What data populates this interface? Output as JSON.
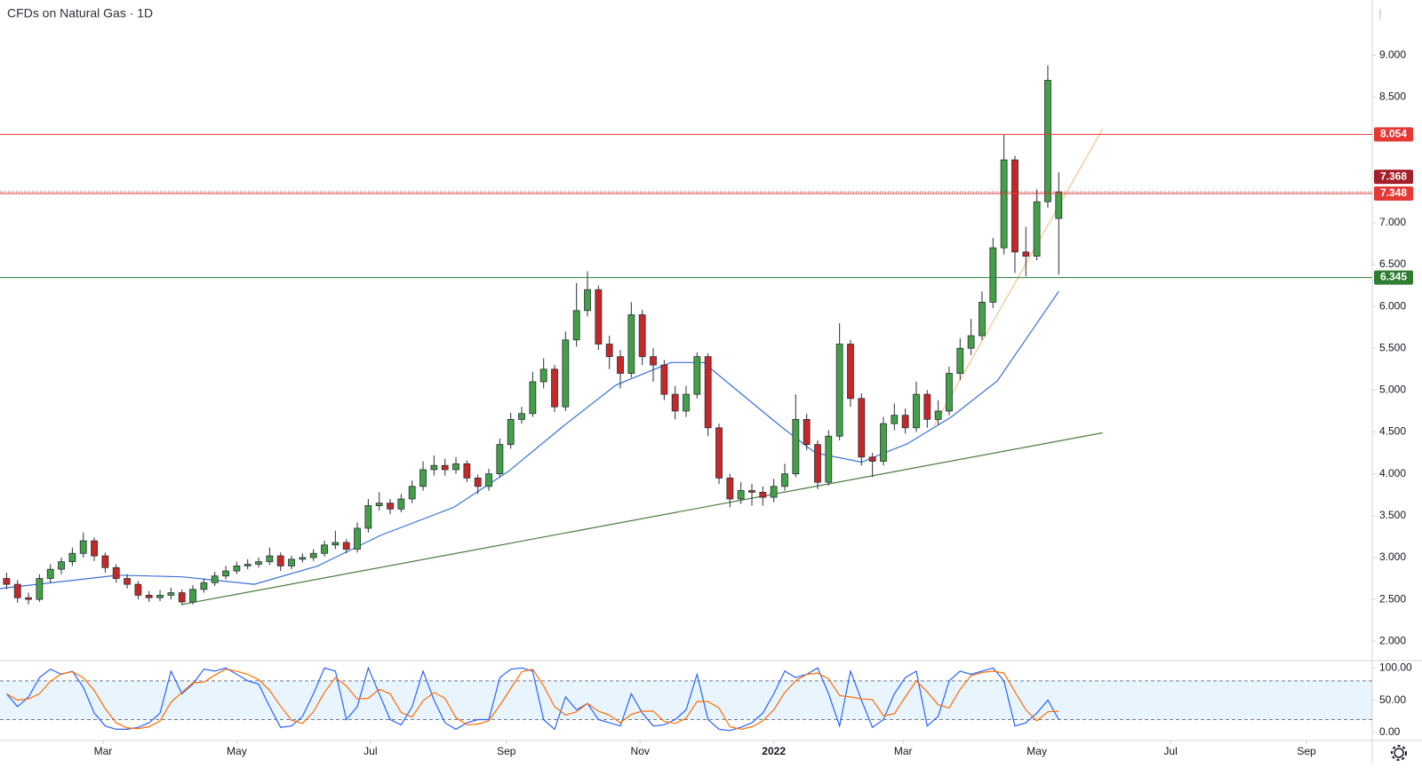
{
  "chart_data": {
    "type": "candlestick",
    "title": "CFDs on Natural Gas · 1D",
    "up_color": "#43a047",
    "down_color": "#c62828",
    "x": [
      15,
      20,
      25,
      30,
      35,
      40,
      45,
      50,
      55,
      60,
      65,
      70,
      75,
      80,
      85,
      90,
      95,
      100,
      105,
      110,
      115,
      120,
      125,
      130,
      135,
      140,
      145,
      150,
      155,
      160,
      165,
      170,
      175,
      180,
      185,
      190,
      195,
      200,
      205,
      210,
      215,
      220,
      225,
      230,
      235,
      240,
      245,
      250,
      255,
      260,
      265,
      270,
      275,
      280,
      285,
      290,
      295,
      300,
      305,
      310,
      315,
      320,
      325,
      330,
      335,
      340,
      345,
      350,
      355,
      360,
      365,
      370,
      375,
      380,
      385,
      390,
      395,
      400,
      405,
      410,
      415,
      420,
      425,
      430,
      435,
      440,
      445,
      450,
      455,
      460,
      465,
      470,
      475,
      480,
      485,
      490,
      495
    ],
    "open": [
      2.75,
      2.68,
      2.52,
      2.5,
      2.75,
      2.86,
      2.95,
      3.05,
      3.2,
      3.02,
      2.88,
      2.75,
      2.68,
      2.55,
      2.52,
      2.55,
      2.58,
      2.47,
      2.62,
      2.7,
      2.78,
      2.84,
      2.9,
      2.92,
      2.95,
      3.02,
      2.9,
      2.98,
      3.0,
      3.05,
      3.15,
      3.18,
      3.1,
      3.35,
      3.62,
      3.65,
      3.58,
      3.7,
      3.85,
      4.05,
      4.1,
      4.05,
      4.12,
      3.95,
      3.85,
      4.0,
      4.35,
      4.65,
      4.72,
      5.1,
      5.25,
      4.8,
      5.6,
      5.95,
      6.2,
      5.55,
      5.4,
      5.2,
      5.9,
      5.4,
      5.3,
      4.95,
      4.75,
      4.95,
      5.4,
      4.55,
      3.95,
      3.7,
      3.8,
      3.78,
      3.72,
      3.85,
      4.0,
      4.65,
      4.35,
      3.9,
      4.45,
      5.55,
      4.9,
      4.2,
      4.15,
      4.6,
      4.7,
      4.55,
      4.95,
      4.65,
      4.75,
      5.2,
      5.5,
      5.65,
      6.05,
      6.7,
      7.75,
      6.65,
      6.6,
      7.25,
      7.05
    ],
    "high": [
      2.82,
      2.73,
      2.58,
      2.8,
      2.92,
      3.0,
      3.12,
      3.3,
      3.24,
      3.06,
      2.92,
      2.8,
      2.72,
      2.6,
      2.61,
      2.64,
      2.62,
      2.67,
      2.75,
      2.83,
      2.9,
      2.95,
      2.98,
      3.0,
      3.12,
      3.06,
      3.02,
      3.05,
      3.1,
      3.2,
      3.32,
      3.22,
      3.42,
      3.7,
      3.78,
      3.7,
      3.76,
      3.92,
      4.15,
      4.22,
      4.18,
      4.2,
      4.16,
      3.99,
      4.06,
      4.42,
      4.73,
      4.8,
      5.22,
      5.38,
      5.3,
      5.7,
      6.28,
      6.42,
      6.25,
      5.65,
      5.48,
      6.05,
      5.96,
      5.5,
      5.36,
      5.05,
      5.05,
      5.45,
      5.44,
      4.6,
      4.0,
      3.9,
      3.88,
      3.85,
      3.94,
      4.12,
      4.95,
      4.72,
      4.4,
      4.52,
      5.8,
      5.6,
      4.96,
      4.25,
      4.68,
      4.84,
      4.78,
      5.1,
      5.0,
      4.88,
      5.28,
      5.62,
      5.85,
      6.18,
      6.82,
      8.05,
      7.8,
      6.95,
      7.4,
      8.88,
      7.6
    ],
    "low": [
      2.62,
      2.46,
      2.44,
      2.47,
      2.7,
      2.8,
      2.9,
      3.0,
      2.96,
      2.82,
      2.7,
      2.63,
      2.5,
      2.47,
      2.48,
      2.5,
      2.43,
      2.44,
      2.58,
      2.66,
      2.74,
      2.8,
      2.86,
      2.88,
      2.91,
      2.84,
      2.86,
      2.94,
      2.96,
      3.01,
      3.1,
      3.05,
      3.06,
      3.3,
      3.56,
      3.52,
      3.54,
      3.65,
      3.8,
      3.98,
      3.98,
      4.0,
      3.9,
      3.76,
      3.8,
      3.96,
      4.3,
      4.6,
      4.68,
      5.02,
      4.74,
      4.75,
      5.52,
      5.88,
      5.48,
      5.25,
      5.02,
      5.15,
      5.3,
      5.1,
      4.88,
      4.65,
      4.68,
      4.9,
      4.45,
      3.88,
      3.6,
      3.64,
      3.62,
      3.62,
      3.66,
      3.8,
      3.96,
      4.28,
      3.82,
      3.86,
      4.4,
      4.8,
      4.1,
      3.96,
      4.1,
      4.52,
      4.48,
      4.5,
      4.55,
      4.58,
      4.7,
      5.12,
      5.42,
      5.6,
      5.98,
      6.62,
      6.4,
      6.36,
      6.55,
      7.18,
      6.38
    ],
    "close": [
      2.68,
      2.52,
      2.5,
      2.75,
      2.86,
      2.95,
      3.05,
      3.2,
      3.02,
      2.88,
      2.75,
      2.68,
      2.55,
      2.52,
      2.55,
      2.58,
      2.47,
      2.62,
      2.7,
      2.78,
      2.84,
      2.9,
      2.92,
      2.95,
      3.02,
      2.9,
      2.98,
      3.0,
      3.05,
      3.15,
      3.18,
      3.1,
      3.35,
      3.62,
      3.65,
      3.58,
      3.7,
      3.85,
      4.05,
      4.1,
      4.05,
      4.12,
      3.95,
      3.85,
      4.0,
      4.35,
      4.65,
      4.72,
      5.1,
      5.25,
      4.8,
      5.6,
      5.95,
      6.2,
      5.55,
      5.4,
      5.2,
      5.9,
      5.4,
      5.3,
      4.95,
      4.75,
      4.95,
      5.4,
      4.55,
      3.95,
      3.7,
      3.8,
      3.78,
      3.72,
      3.85,
      4.0,
      4.65,
      4.35,
      3.9,
      4.45,
      5.55,
      4.9,
      4.2,
      4.15,
      4.6,
      4.7,
      4.55,
      4.95,
      4.65,
      4.75,
      5.2,
      5.5,
      5.65,
      6.05,
      6.7,
      7.75,
      6.65,
      6.6,
      7.25,
      8.7,
      7.368
    ],
    "xlim": [
      12,
      638
    ],
    "xticks": [
      {
        "value": 59,
        "label": "Mar"
      },
      {
        "value": 120,
        "label": "May"
      },
      {
        "value": 181,
        "label": "Jul"
      },
      {
        "value": 243,
        "label": "Sep"
      },
      {
        "value": 304,
        "label": "Nov"
      },
      {
        "value": 365,
        "label": "2022"
      },
      {
        "value": 424,
        "label": "Mar"
      },
      {
        "value": 485,
        "label": "May"
      },
      {
        "value": 546,
        "label": "Jul"
      },
      {
        "value": 608,
        "label": "Sep"
      }
    ],
    "ylim": [
      1.78,
      9.66
    ],
    "yticks": [
      {
        "value": 2,
        "label": "2.000"
      },
      {
        "value": 2.5,
        "label": "2.500"
      },
      {
        "value": 3,
        "label": "3.000"
      },
      {
        "value": 3.5,
        "label": "3.500"
      },
      {
        "value": 4,
        "label": "4.000"
      },
      {
        "value": 4.5,
        "label": "4.500"
      },
      {
        "value": 5,
        "label": "5.000"
      },
      {
        "value": 5.5,
        "label": "5.500"
      },
      {
        "value": 6,
        "label": "6.000"
      },
      {
        "value": 6.5,
        "label": "6.500"
      },
      {
        "value": 7,
        "label": "7.000"
      },
      {
        "value": 8.5,
        "label": "8.500"
      },
      {
        "value": 9,
        "label": "9.000"
      }
    ],
    "levels": [
      {
        "value": 8.054,
        "color": "#e53935"
      },
      {
        "value": 7.348,
        "color": "#e53935"
      },
      {
        "value": 6.345,
        "color": "#2e7d32"
      }
    ],
    "last_price": {
      "value": 7.368,
      "color": "#a31f2a"
    },
    "moving_average": {
      "color": "#3a6fd8",
      "x": [
        12,
        66,
        95,
        128,
        157,
        186,
        219,
        244,
        269,
        293,
        318,
        333,
        343,
        368,
        384,
        405,
        426,
        446,
        467,
        484,
        495
      ],
      "values": [
        2.63,
        2.79,
        2.77,
        2.68,
        2.9,
        3.27,
        3.6,
        4.03,
        4.57,
        5.06,
        5.33,
        5.33,
        5.11,
        4.57,
        4.25,
        4.14,
        4.36,
        4.68,
        5.11,
        5.76,
        6.18
      ]
    },
    "trend_lines": [
      {
        "color": "#4a7c3a",
        "x": [
          95,
          515
        ],
        "values": [
          2.44,
          4.49
        ]
      },
      {
        "color": "#f5c28a",
        "x": [
          438,
          515
        ],
        "values": [
          4.57,
          8.12
        ]
      }
    ],
    "stochastic": {
      "ylim": [
        -11,
        110
      ],
      "yticks": [
        {
          "value": 0,
          "label": "0.00"
        },
        {
          "value": 50,
          "label": "50.00"
        },
        {
          "value": 100,
          "label": "100.00"
        }
      ],
      "bands": [
        20,
        80
      ],
      "series": [
        {
          "color": "#2962ff",
          "values": [
            60,
            40,
            55,
            85,
            98,
            90,
            95,
            70,
            30,
            10,
            5,
            5,
            8,
            15,
            30,
            95,
            60,
            75,
            98,
            95,
            100,
            90,
            80,
            75,
            40,
            8,
            10,
            25,
            60,
            100,
            95,
            20,
            40,
            100,
            60,
            20,
            12,
            40,
            95,
            50,
            15,
            5,
            15,
            20,
            20,
            85,
            98,
            100,
            95,
            20,
            5,
            55,
            35,
            45,
            20,
            15,
            10,
            60,
            30,
            10,
            12,
            20,
            35,
            90,
            20,
            5,
            3,
            8,
            15,
            30,
            60,
            95,
            85,
            90,
            100,
            60,
            10,
            95,
            50,
            8,
            20,
            60,
            85,
            95,
            10,
            25,
            80,
            95,
            90,
            95,
            100,
            80,
            10,
            15,
            30,
            50,
            20
          ]
        },
        {
          "color": "#ff6d00",
          "values": [
            60,
            50,
            52,
            60,
            79,
            91,
            94,
            85,
            65,
            37,
            15,
            7,
            6,
            9,
            18,
            47,
            62,
            77,
            78,
            89,
            98,
            95,
            90,
            82,
            65,
            41,
            19,
            14,
            32,
            62,
            85,
            72,
            52,
            53,
            67,
            60,
            31,
            24,
            49,
            62,
            53,
            23,
            12,
            13,
            18,
            42,
            68,
            94,
            98,
            72,
            40,
            27,
            32,
            45,
            33,
            27,
            15,
            28,
            33,
            33,
            17,
            14,
            22,
            48,
            48,
            38,
            9,
            5,
            9,
            18,
            35,
            62,
            80,
            90,
            92,
            83,
            57,
            55,
            52,
            51,
            26,
            29,
            55,
            80,
            63,
            43,
            38,
            67,
            88,
            93,
            95,
            92,
            63,
            35,
            18,
            32,
            33
          ]
        }
      ]
    }
  }
}
